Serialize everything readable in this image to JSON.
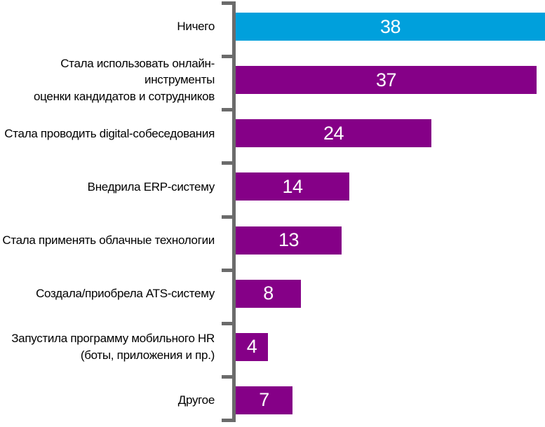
{
  "chart_data": {
    "type": "bar",
    "orientation": "horizontal",
    "title": "",
    "xlabel": "",
    "ylabel": "",
    "grid": false,
    "legend": false,
    "value_labels_shown": true,
    "categories": [
      "Ничего",
      "Стала использовать онлайн-инструменты\nоценки кандидатов и сотрудников",
      "Стала проводить digital-собеседования",
      "Внедрила ERP-систему",
      "Стала применять облачные технологии",
      "Создала/приобрела ATS-систему",
      "Запустила программу мобильного HR\n(боты, приложения и пр.)",
      "Другое"
    ],
    "values": [
      38,
      37,
      24,
      14,
      13,
      8,
      4,
      7
    ],
    "xlim": [
      0,
      38
    ],
    "bar_colors": [
      "#00A0DC",
      "#850087",
      "#850087",
      "#850087",
      "#850087",
      "#850087",
      "#850087",
      "#850087"
    ],
    "colors": {
      "highlight_bar": "#00A0DC",
      "default_bar": "#850087",
      "axis": "#6b6b6b",
      "value_text": "#ffffff",
      "label_text": "#000000"
    }
  }
}
